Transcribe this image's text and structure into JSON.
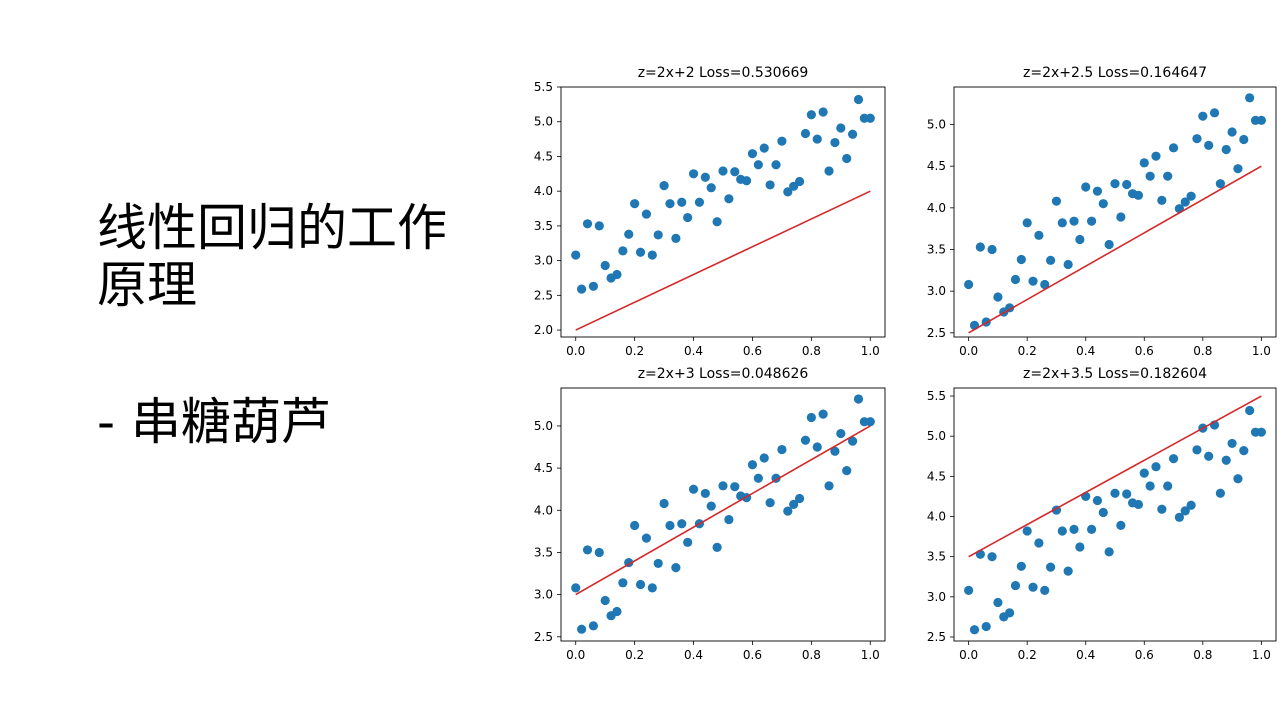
{
  "slide": {
    "title": "线性回归的工作原理",
    "subtitle": "- 串糖葫芦"
  },
  "colors": {
    "points": "#1f77b4",
    "line": "#d62728",
    "axis": "#000000"
  },
  "chart_data": [
    {
      "type": "scatter",
      "title": "z=2x+2 Loss=0.530669",
      "xlim": [
        -0.05,
        1.05
      ],
      "ylim": [
        1.9,
        5.5
      ],
      "xticks": [
        0.0,
        0.2,
        0.4,
        0.6,
        0.8,
        1.0
      ],
      "xtick_labels": [
        "0.0",
        "0.2",
        "0.4",
        "0.6",
        "0.8",
        "1.0"
      ],
      "yticks": [
        2.0,
        2.5,
        3.0,
        3.5,
        4.0,
        4.5,
        5.0,
        5.5
      ],
      "ytick_labels": [
        "2.0",
        "2.5",
        "3.0",
        "3.5",
        "4.0",
        "4.5",
        "5.0",
        "5.5"
      ],
      "line": {
        "slope": 2,
        "intercept": 2
      }
    },
    {
      "type": "scatter",
      "title": "z=2x+2.5 Loss=0.164647",
      "xlim": [
        -0.05,
        1.05
      ],
      "ylim": [
        2.45,
        5.45
      ],
      "xticks": [
        0.0,
        0.2,
        0.4,
        0.6,
        0.8,
        1.0
      ],
      "xtick_labels": [
        "0.0",
        "0.2",
        "0.4",
        "0.6",
        "0.8",
        "1.0"
      ],
      "yticks": [
        2.5,
        3.0,
        3.5,
        4.0,
        4.5,
        5.0
      ],
      "ytick_labels": [
        "2.5",
        "3.0",
        "3.5",
        "4.0",
        "4.5",
        "5.0"
      ],
      "line": {
        "slope": 2,
        "intercept": 2.5
      }
    },
    {
      "type": "scatter",
      "title": "z=2x+3 Loss=0.048626",
      "xlim": [
        -0.05,
        1.05
      ],
      "ylim": [
        2.45,
        5.45
      ],
      "xticks": [
        0.0,
        0.2,
        0.4,
        0.6,
        0.8,
        1.0
      ],
      "xtick_labels": [
        "0.0",
        "0.2",
        "0.4",
        "0.6",
        "0.8",
        "1.0"
      ],
      "yticks": [
        2.5,
        3.0,
        3.5,
        4.0,
        4.5,
        5.0
      ],
      "ytick_labels": [
        "2.5",
        "3.0",
        "3.5",
        "4.0",
        "4.5",
        "5.0"
      ],
      "line": {
        "slope": 2,
        "intercept": 3
      }
    },
    {
      "type": "scatter",
      "title": "z=2x+3.5 Loss=0.182604",
      "xlim": [
        -0.05,
        1.05
      ],
      "ylim": [
        2.45,
        5.6
      ],
      "xticks": [
        0.0,
        0.2,
        0.4,
        0.6,
        0.8,
        1.0
      ],
      "xtick_labels": [
        "0.0",
        "0.2",
        "0.4",
        "0.6",
        "0.8",
        "1.0"
      ],
      "yticks": [
        2.5,
        3.0,
        3.5,
        4.0,
        4.5,
        5.0,
        5.5
      ],
      "ytick_labels": [
        "2.5",
        "3.0",
        "3.5",
        "4.0",
        "4.5",
        "5.0",
        "5.5"
      ],
      "line": {
        "slope": 2,
        "intercept": 3.5
      }
    }
  ],
  "scatter_points": {
    "x": [
      0.0,
      0.02,
      0.04,
      0.06,
      0.08,
      0.1,
      0.12,
      0.14,
      0.16,
      0.18,
      0.2,
      0.22,
      0.24,
      0.26,
      0.28,
      0.3,
      0.32,
      0.34,
      0.36,
      0.38,
      0.4,
      0.42,
      0.44,
      0.46,
      0.48,
      0.5,
      0.52,
      0.54,
      0.56,
      0.58,
      0.6,
      0.62,
      0.64,
      0.66,
      0.68,
      0.7,
      0.72,
      0.74,
      0.76,
      0.78,
      0.8,
      0.82,
      0.84,
      0.86,
      0.88,
      0.9,
      0.92,
      0.94,
      0.96,
      0.98,
      1.0
    ],
    "y": [
      3.08,
      2.59,
      3.53,
      2.63,
      3.5,
      2.93,
      2.75,
      2.8,
      3.14,
      3.38,
      3.82,
      3.12,
      3.67,
      3.08,
      3.37,
      4.08,
      3.82,
      3.32,
      3.84,
      3.62,
      4.25,
      3.84,
      4.2,
      4.05,
      3.56,
      4.29,
      3.89,
      4.28,
      4.17,
      4.15,
      4.54,
      4.38,
      4.62,
      4.09,
      4.38,
      4.72,
      3.99,
      4.07,
      4.14,
      4.83,
      5.1,
      4.75,
      5.14,
      4.29,
      4.7,
      4.91,
      4.47,
      4.82,
      5.32,
      5.05,
      5.05
    ]
  }
}
